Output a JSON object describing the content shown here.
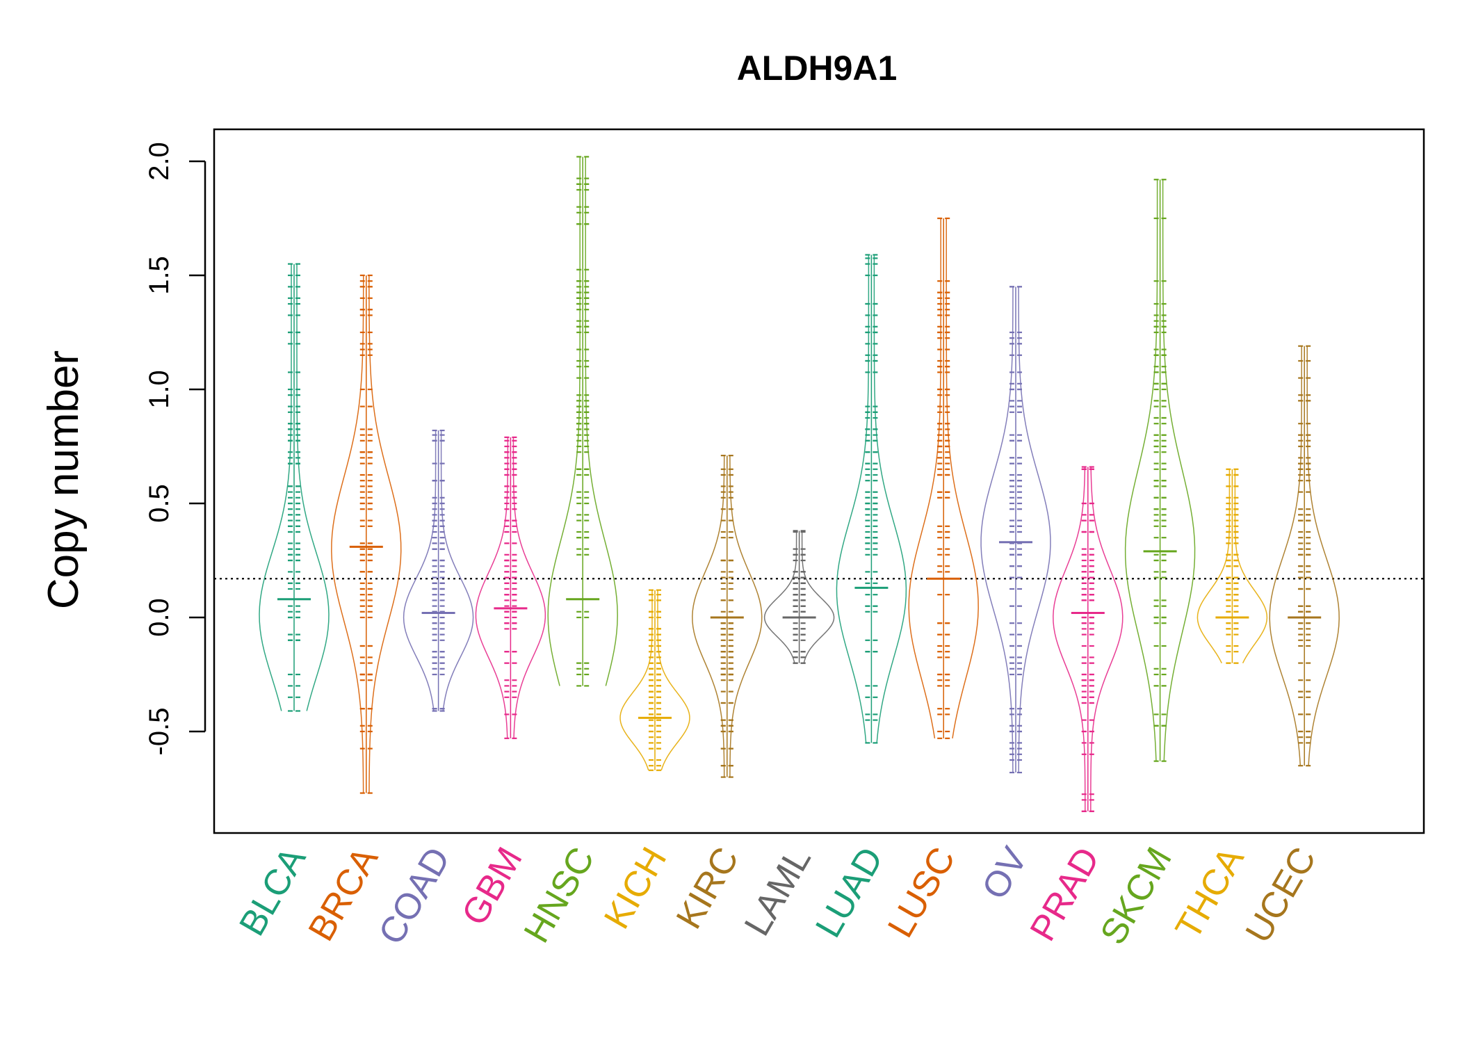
{
  "chart_data": {
    "type": "beanplot",
    "title": "ALDH9A1",
    "xlabel": "",
    "ylabel": "Copy number",
    "ylim": [
      -0.95,
      2.15
    ],
    "yticks": [
      -0.5,
      0.0,
      0.5,
      1.0,
      1.5,
      2.0
    ],
    "ytick_labels": [
      "-0.5",
      "0.0",
      "0.5",
      "1.0",
      "1.5",
      "2.0"
    ],
    "reference_line": 0.17,
    "reference_line_style": "dotted",
    "grid": false,
    "legend": "none",
    "categories": [
      {
        "name": "BLCA",
        "color": "#1B9E77",
        "min": -0.41,
        "max": 1.55,
        "mode": 0.01,
        "median": 0.08
      },
      {
        "name": "BRCA",
        "color": "#D95F02",
        "min": -0.77,
        "max": 1.5,
        "mode": 0.3,
        "median": 0.31
      },
      {
        "name": "COAD",
        "color": "#7570B3",
        "min": -0.41,
        "max": 0.82,
        "mode": 0.0,
        "median": 0.02
      },
      {
        "name": "GBM",
        "color": "#E7298A",
        "min": -0.53,
        "max": 0.79,
        "mode": 0.01,
        "median": 0.04
      },
      {
        "name": "HNSC",
        "color": "#66A61E",
        "min": -0.3,
        "max": 2.02,
        "mode": 0.01,
        "median": 0.08
      },
      {
        "name": "KICH",
        "color": "#E6AB02",
        "min": -0.67,
        "max": 0.12,
        "mode": -0.44,
        "median": -0.44
      },
      {
        "name": "KIRC",
        "color": "#A6761D",
        "min": -0.7,
        "max": 0.71,
        "mode": 0.0,
        "median": 0.0
      },
      {
        "name": "LAML",
        "color": "#666666",
        "min": -0.2,
        "max": 0.38,
        "mode": 0.0,
        "median": 0.0
      },
      {
        "name": "LUAD",
        "color": "#1B9E77",
        "min": -0.55,
        "max": 1.59,
        "mode": 0.12,
        "median": 0.13
      },
      {
        "name": "LUSC",
        "color": "#D95F02",
        "min": -0.53,
        "max": 1.75,
        "mode": 0.05,
        "median": 0.17
      },
      {
        "name": "OV",
        "color": "#7570B3",
        "min": -0.68,
        "max": 1.45,
        "mode": 0.33,
        "median": 0.33
      },
      {
        "name": "PRAD",
        "color": "#E7298A",
        "min": -0.85,
        "max": 0.66,
        "mode": 0.0,
        "median": 0.02
      },
      {
        "name": "SKCM",
        "color": "#66A61E",
        "min": -0.63,
        "max": 1.92,
        "mode": 0.29,
        "median": 0.29
      },
      {
        "name": "THCA",
        "color": "#E6AB02",
        "min": -0.2,
        "max": 0.65,
        "mode": 0.0,
        "median": 0.0
      },
      {
        "name": "UCEC",
        "color": "#A6761D",
        "min": -0.65,
        "max": 1.19,
        "mode": 0.0,
        "median": 0.0
      }
    ]
  }
}
